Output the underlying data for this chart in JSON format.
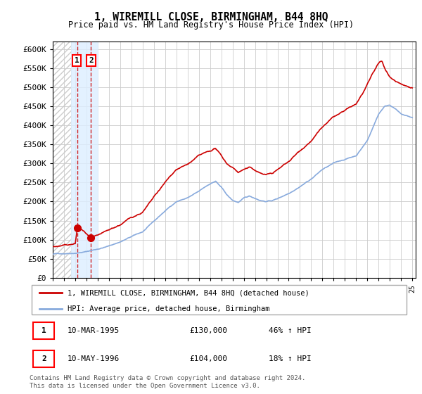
{
  "title": "1, WIREMILL CLOSE, BIRMINGHAM, B44 8HQ",
  "subtitle": "Price paid vs. HM Land Registry's House Price Index (HPI)",
  "legend_line1": "1, WIREMILL CLOSE, BIRMINGHAM, B44 8HQ (detached house)",
  "legend_line2": "HPI: Average price, detached house, Birmingham",
  "footer": "Contains HM Land Registry data © Crown copyright and database right 2024.\nThis data is licensed under the Open Government Licence v3.0.",
  "table_row1": [
    "1",
    "10-MAR-1995",
    "£130,000",
    "46% ↑ HPI"
  ],
  "table_row2": [
    "2",
    "10-MAY-1996",
    "£104,000",
    "18% ↑ HPI"
  ],
  "sale1_year": 1995.19,
  "sale1_price": 130000,
  "sale2_year": 1996.36,
  "sale2_price": 104000,
  "hpi_color": "#88aadd",
  "price_color": "#cc0000",
  "ylim": [
    0,
    620000
  ],
  "yticks": [
    0,
    50000,
    100000,
    150000,
    200000,
    250000,
    300000,
    350000,
    400000,
    450000,
    500000,
    550000,
    600000
  ],
  "xlim_start": 1993.0,
  "xlim_end": 2025.3,
  "sale_region_color": "#ddeeff",
  "hpi_keypoints": [
    [
      1993.0,
      62000
    ],
    [
      1994.0,
      64000
    ],
    [
      1995.0,
      67000
    ],
    [
      1996.0,
      71000
    ],
    [
      1997.0,
      78000
    ],
    [
      1998.0,
      86000
    ],
    [
      1999.0,
      97000
    ],
    [
      2000.0,
      110000
    ],
    [
      2001.0,
      122000
    ],
    [
      2002.0,
      148000
    ],
    [
      2003.0,
      175000
    ],
    [
      2004.0,
      200000
    ],
    [
      2005.0,
      210000
    ],
    [
      2006.0,
      225000
    ],
    [
      2007.0,
      245000
    ],
    [
      2007.5,
      252000
    ],
    [
      2008.0,
      235000
    ],
    [
      2008.5,
      215000
    ],
    [
      2009.0,
      200000
    ],
    [
      2009.5,
      195000
    ],
    [
      2010.0,
      205000
    ],
    [
      2010.5,
      210000
    ],
    [
      2011.0,
      205000
    ],
    [
      2011.5,
      200000
    ],
    [
      2012.0,
      198000
    ],
    [
      2012.5,
      200000
    ],
    [
      2013.0,
      205000
    ],
    [
      2014.0,
      220000
    ],
    [
      2015.0,
      240000
    ],
    [
      2016.0,
      260000
    ],
    [
      2017.0,
      285000
    ],
    [
      2018.0,
      300000
    ],
    [
      2019.0,
      310000
    ],
    [
      2020.0,
      320000
    ],
    [
      2021.0,
      360000
    ],
    [
      2022.0,
      430000
    ],
    [
      2022.5,
      450000
    ],
    [
      2023.0,
      455000
    ],
    [
      2023.5,
      445000
    ],
    [
      2024.0,
      430000
    ],
    [
      2024.5,
      425000
    ],
    [
      2025.0,
      420000
    ]
  ],
  "price_keypoints": [
    [
      1993.0,
      82000
    ],
    [
      1994.0,
      85000
    ],
    [
      1995.0,
      89000
    ],
    [
      1995.19,
      130000
    ],
    [
      1995.5,
      128000
    ],
    [
      1996.0,
      115000
    ],
    [
      1996.36,
      104000
    ],
    [
      1996.5,
      103000
    ],
    [
      1997.0,
      106000
    ],
    [
      1998.0,
      118000
    ],
    [
      1999.0,
      133000
    ],
    [
      2000.0,
      152000
    ],
    [
      2001.0,
      168000
    ],
    [
      2002.0,
      205000
    ],
    [
      2003.0,
      242000
    ],
    [
      2004.0,
      278000
    ],
    [
      2005.0,
      291000
    ],
    [
      2006.0,
      312000
    ],
    [
      2007.0,
      322000
    ],
    [
      2007.3,
      328000
    ],
    [
      2007.5,
      330000
    ],
    [
      2008.0,
      310000
    ],
    [
      2008.5,
      290000
    ],
    [
      2009.0,
      282000
    ],
    [
      2009.5,
      270000
    ],
    [
      2010.0,
      278000
    ],
    [
      2010.5,
      282000
    ],
    [
      2011.0,
      275000
    ],
    [
      2011.5,
      268000
    ],
    [
      2012.0,
      265000
    ],
    [
      2012.5,
      268000
    ],
    [
      2013.0,
      278000
    ],
    [
      2014.0,
      300000
    ],
    [
      2015.0,
      330000
    ],
    [
      2016.0,
      360000
    ],
    [
      2017.0,
      395000
    ],
    [
      2018.0,
      420000
    ],
    [
      2019.0,
      435000
    ],
    [
      2020.0,
      450000
    ],
    [
      2021.0,
      500000
    ],
    [
      2021.5,
      530000
    ],
    [
      2022.0,
      555000
    ],
    [
      2022.3,
      560000
    ],
    [
      2022.5,
      545000
    ],
    [
      2023.0,
      520000
    ],
    [
      2023.5,
      510000
    ],
    [
      2024.0,
      505000
    ],
    [
      2024.5,
      500000
    ],
    [
      2025.0,
      498000
    ]
  ]
}
